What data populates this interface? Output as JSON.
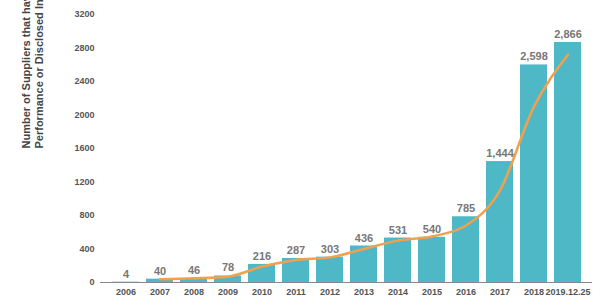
{
  "chart_data": {
    "type": "bar",
    "ylabel": "Number of Suppliers that have Improved Their\nPerformance or Disclosed Information",
    "categories": [
      "2006",
      "2007",
      "2008",
      "2009",
      "2010",
      "2011",
      "2012",
      "2013",
      "2014",
      "2015",
      "2016",
      "2017",
      "2018",
      "2019.12.25"
    ],
    "series": [
      {
        "type": "bar",
        "color": "#4fb8c6",
        "values": [
          4,
          40,
          46,
          78,
          216,
          287,
          303,
          436,
          531,
          540,
          785,
          1444,
          2598,
          2866
        ],
        "value_labels": [
          "4",
          "40",
          "46",
          "78",
          "216",
          "287",
          "303",
          "436",
          "531",
          "540",
          "785",
          "1,444",
          "2,598",
          "2,866"
        ]
      },
      {
        "type": "line",
        "color": "#f3a04c",
        "values": [
          null,
          40,
          50,
          70,
          190,
          270,
          300,
          400,
          500,
          550,
          680,
          1100,
          2100,
          2720
        ]
      }
    ],
    "ylim": [
      0,
      3200
    ],
    "yticks": [
      0,
      400,
      800,
      1200,
      1600,
      2000,
      2400,
      2800,
      3200
    ],
    "grid": false,
    "data_labels": true
  }
}
